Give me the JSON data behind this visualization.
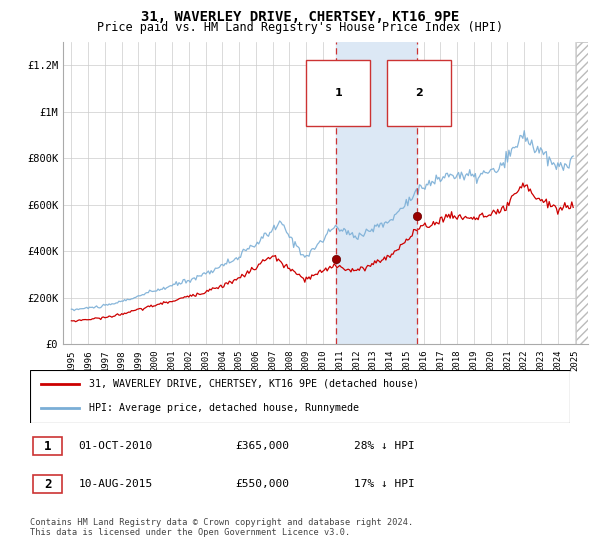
{
  "title": "31, WAVERLEY DRIVE, CHERTSEY, KT16 9PE",
  "subtitle": "Price paid vs. HM Land Registry's House Price Index (HPI)",
  "title_fontsize": 10,
  "subtitle_fontsize": 8.5,
  "ylim": [
    0,
    1300000
  ],
  "yticks": [
    0,
    200000,
    400000,
    600000,
    800000,
    1000000,
    1200000
  ],
  "ytick_labels": [
    "£0",
    "£200K",
    "£400K",
    "£600K",
    "£800K",
    "£1M",
    "£1.2M"
  ],
  "grid_color": "#cccccc",
  "transaction1": {
    "date": "01-OCT-2010",
    "price": 365000,
    "label": "1",
    "hpi_diff": "28% ↓ HPI"
  },
  "transaction2": {
    "date": "10-AUG-2015",
    "price": 550000,
    "label": "2",
    "hpi_diff": "17% ↓ HPI"
  },
  "hpi_line_color": "#7aaed6",
  "price_line_color": "#cc0000",
  "shade_color": "#dce8f5",
  "dashed_color": "#cc3333",
  "legend_line1": "31, WAVERLEY DRIVE, CHERTSEY, KT16 9PE (detached house)",
  "legend_line2": "HPI: Average price, detached house, Runnymede",
  "footnote": "Contains HM Land Registry data © Crown copyright and database right 2024.\nThis data is licensed under the Open Government Licence v3.0.",
  "t1_year": 2010.75,
  "t2_year": 2015.58,
  "t1_price": 365000,
  "t2_price": 550000,
  "xlim_left": 1994.5,
  "xlim_right": 2025.8
}
